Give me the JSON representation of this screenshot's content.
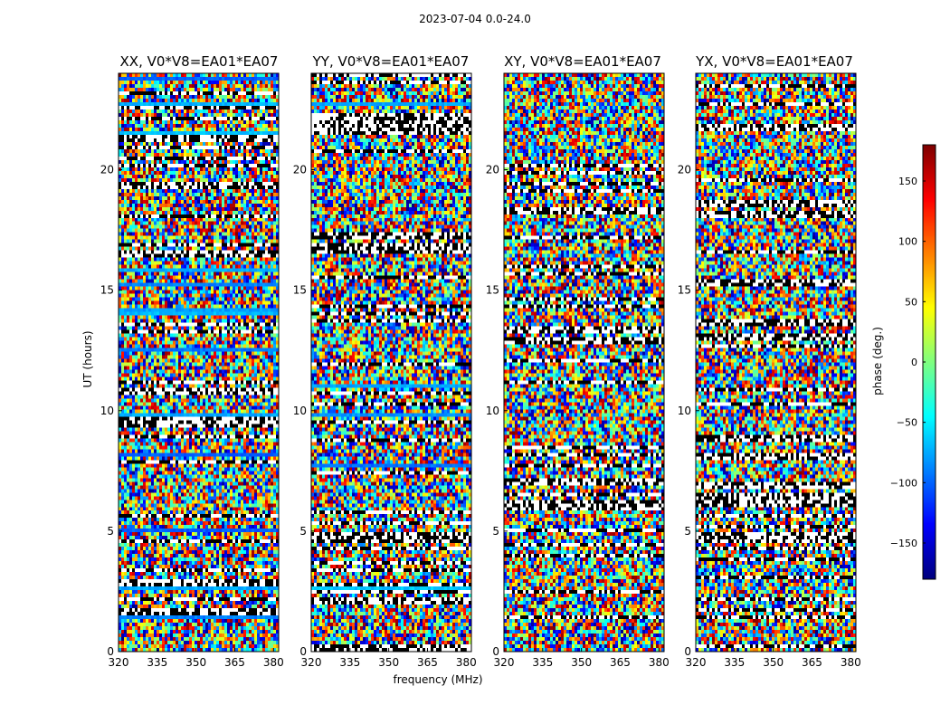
{
  "figure": {
    "suptitle": "2023-07-04 0.0-24.0",
    "xlabel": "frequency (MHz)",
    "ylabel": "UT (hours)",
    "colorbar_label": "phase (deg.)"
  },
  "chart_data": {
    "type": "heatmap",
    "panels": [
      {
        "title": "XX, V0*V8=EA01*EA07"
      },
      {
        "title": "YY, V0*V8=EA01*EA07"
      },
      {
        "title": "XY, V0*V8=EA01*EA07"
      },
      {
        "title": "YX, V0*V8=EA01*EA07"
      }
    ],
    "xlim": [
      320,
      382
    ],
    "xticks": [
      320,
      335,
      350,
      365,
      380
    ],
    "ylim": [
      0,
      24
    ],
    "yticks": [
      0,
      5,
      10,
      15,
      20
    ],
    "colorbar": {
      "range": [
        -180,
        180
      ],
      "ticks": [
        -150,
        -100,
        -50,
        0,
        50,
        100,
        150
      ],
      "colormap": "jet"
    },
    "notes_value_encoding": "phase in degrees; blank rows = flagged data"
  }
}
